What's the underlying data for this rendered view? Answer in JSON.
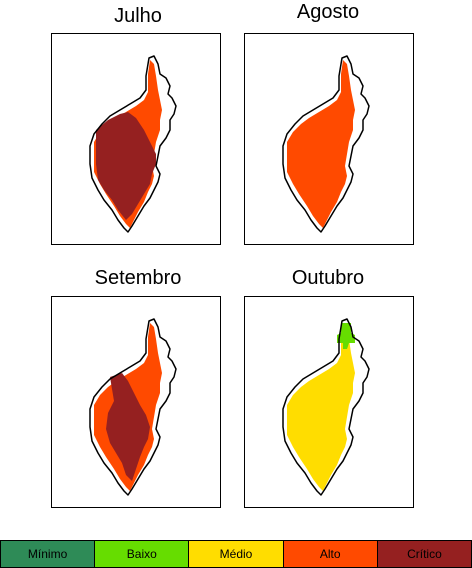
{
  "colors": {
    "minimo": "#2e8b57",
    "baixo": "#66dd00",
    "medio": "#ffdd00",
    "alto": "#ff4a00",
    "critico": "#952020"
  },
  "maps": [
    {
      "title": "Julho",
      "base": "alto",
      "overlay": "critico_large"
    },
    {
      "title": "Agosto",
      "base": "alto",
      "overlay": "none"
    },
    {
      "title": "Setembro",
      "base": "alto",
      "overlay": "critico_medium"
    },
    {
      "title": "Outubro",
      "base": "medio",
      "overlay": "baixo_top"
    }
  ],
  "legend": [
    {
      "label": "Mínimo",
      "color": "minimo"
    },
    {
      "label": "Baixo",
      "color": "baixo"
    },
    {
      "label": "Médio",
      "color": "medio"
    },
    {
      "label": "Alto",
      "color": "alto"
    },
    {
      "label": "Crítico",
      "color": "critico"
    }
  ]
}
